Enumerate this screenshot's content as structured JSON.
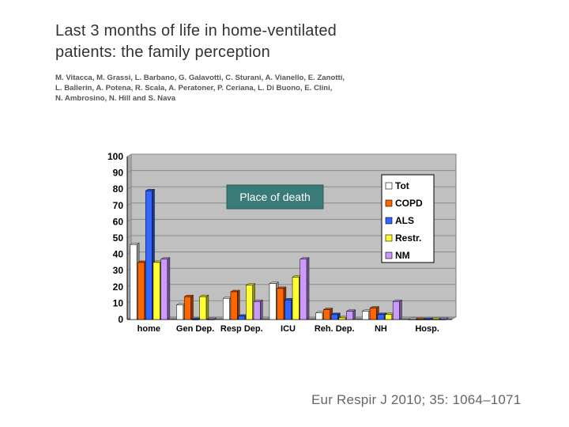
{
  "slide": {
    "title_lines": [
      "Last 3 months of life in home-ventilated",
      "patients: the family perception"
    ],
    "author_lines": [
      "M. Vitacca, M. Grassi, L. Barbano, G. Galavotti, C. Sturani, A. Vianello, E. Zanotti,",
      "L. Ballerin, A. Potena, R. Scala, A. Peratoner, P. Ceriana, L. Di Buono, E. Clini,",
      "N. Ambrosino, N. Hill and S. Nava"
    ],
    "citation": "Eur Respir J 2010; 35: 1064–1071"
  },
  "colors": {
    "plot_bg": "#c0c0c0",
    "grid": "#8a8a8a",
    "annotation_bg": "#3a7a78"
  },
  "chart_data": {
    "type": "bar",
    "title": "",
    "xlabel": "",
    "ylabel": "",
    "ylim": [
      0,
      100
    ],
    "yticks": [
      0,
      10,
      20,
      30,
      40,
      50,
      60,
      70,
      80,
      90,
      100
    ],
    "grid": true,
    "legend_position": "top-right",
    "annotation": "Place of death",
    "categories": [
      "home",
      "Gen Dep.",
      "Resp Dep.",
      "ICU",
      "Reh. Dep.",
      "NH",
      "Hosp."
    ],
    "series": [
      {
        "name": "Tot",
        "color": "#ffffff",
        "values": [
          46,
          9,
          13,
          22,
          4,
          5,
          0
        ]
      },
      {
        "name": "COPD",
        "color": "#ff6600",
        "values": [
          35,
          14,
          17,
          19,
          6,
          7,
          0
        ]
      },
      {
        "name": "ALS",
        "color": "#3366ff",
        "values": [
          79,
          0,
          2,
          12,
          3,
          3,
          0
        ]
      },
      {
        "name": "Restr.",
        "color": "#ffff33",
        "values": [
          35,
          14,
          21,
          26,
          1,
          3,
          0
        ]
      },
      {
        "name": "NM",
        "color": "#cc99ff",
        "values": [
          37,
          0,
          11,
          37,
          5,
          11,
          0
        ]
      }
    ]
  }
}
